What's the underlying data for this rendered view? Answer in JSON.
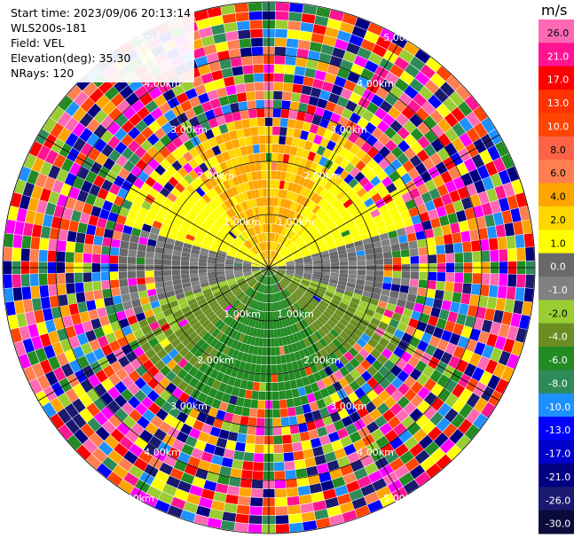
{
  "header": {
    "start_time": "Start time: 2023/09/06 20:13:14",
    "instrument": "WLS200s-181",
    "field": "Field: VEL",
    "elevation": "Elevation(deg): 35.30",
    "nrays": "NRays: 120"
  },
  "colorbar": {
    "title": "m/s",
    "labels": [
      "26.0",
      "21.0",
      "17.0",
      "13.0",
      "10.0",
      "8.0",
      "6.0",
      "4.0",
      "2.0",
      "1.0",
      "0.0",
      "-1.0",
      "-2.0",
      "-4.0",
      "-6.0",
      "-8.0",
      "-10.0",
      "-13.0",
      "-17.0",
      "-21.0",
      "-26.0",
      "-30.0"
    ],
    "colors": [
      "#ff69b4",
      "#ff1493",
      "#ff0000",
      "#ff3300",
      "#ff4500",
      "#ff6347",
      "#ff7f50",
      "#ffa500",
      "#ffd700",
      "#ffff00",
      "#696969",
      "#808080",
      "#9acd32",
      "#6b8e23",
      "#228b22",
      "#2e8b57",
      "#1e90ff",
      "#0000ff",
      "#0000cd",
      "#000080",
      "#191970",
      "#0b0b3b"
    ]
  },
  "chart_data": {
    "type": "polar-ppi",
    "title": "",
    "field": "VEL",
    "units": "m/s",
    "nrays": 120,
    "elevation_deg": 35.3,
    "range_rings_km": [
      1.0,
      2.0,
      3.0,
      4.0,
      5.0
    ],
    "max_range_km": 5.0,
    "ring_labels": [
      "1.00km",
      "2.00km",
      "3.00km",
      "4.00km",
      "5.00km"
    ],
    "value_range": [
      -30.0,
      26.0
    ],
    "color_scale_labels": [
      "26.0",
      "21.0",
      "17.0",
      "13.0",
      "10.0",
      "8.0",
      "6.0",
      "4.0",
      "2.0",
      "1.0",
      "0.0",
      "-1.0",
      "-2.0",
      "-4.0",
      "-6.0",
      "-8.0",
      "-10.0",
      "-13.0",
      "-17.0",
      "-21.0",
      "-26.0",
      "-30.0"
    ]
  }
}
